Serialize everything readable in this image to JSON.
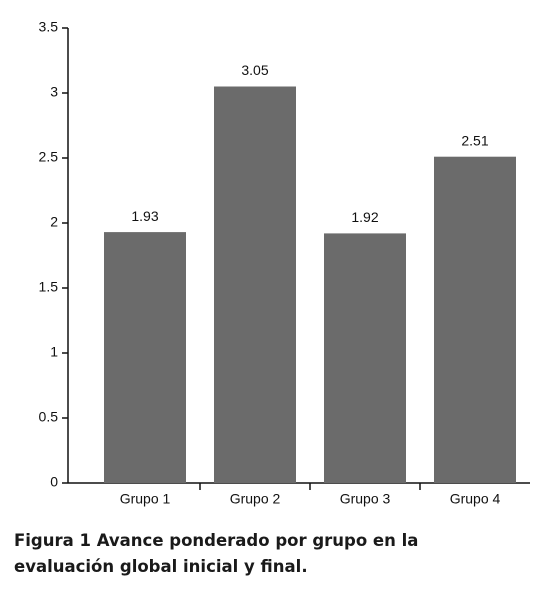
{
  "chart_data": {
    "type": "bar",
    "title": "Figura 1 Avance ponderado por grupo en la evaluación global inicial y final.",
    "categories": [
      "Grupo 1",
      "Grupo 2",
      "Grupo 3",
      "Grupo 4"
    ],
    "values": [
      1.93,
      3.05,
      1.92,
      2.51
    ],
    "color": "#6b6b6b",
    "ylim": [
      0,
      3.5
    ],
    "yticks": [
      0,
      0.5,
      1,
      1.5,
      2,
      2.5,
      3,
      3.5
    ],
    "grid": false
  }
}
